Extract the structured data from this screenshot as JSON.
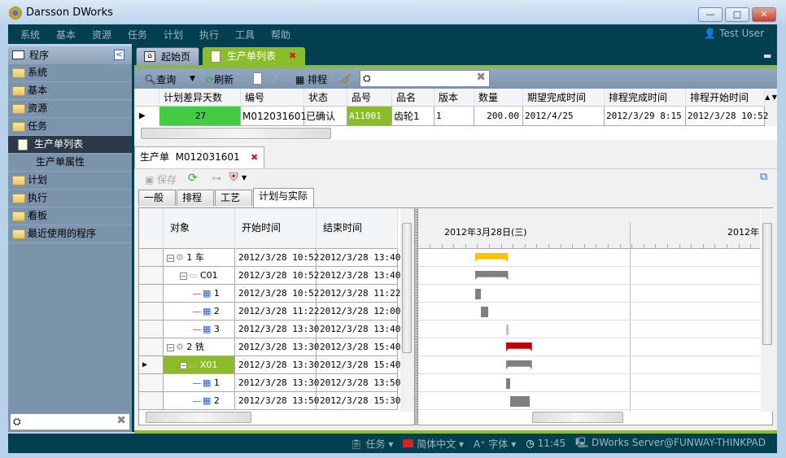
{
  "window": {
    "title": "Darsson DWorks",
    "min": "—",
    "max": "□",
    "close": "✕"
  },
  "menu": [
    "系统",
    "基本",
    "资源",
    "任务",
    "计划",
    "执行",
    "工具",
    "帮助"
  ],
  "user": "Test User",
  "sidebar": {
    "header": "程序",
    "collapse": "<",
    "items": [
      {
        "label": "系统",
        "type": "folder"
      },
      {
        "label": "基本",
        "type": "folder"
      },
      {
        "label": "资源",
        "type": "folder"
      },
      {
        "label": "任务",
        "type": "folder"
      },
      {
        "label": "生产单列表",
        "type": "page",
        "selected": true
      },
      {
        "label": "生产单属性",
        "type": "sub"
      },
      {
        "label": "计划",
        "type": "folder"
      },
      {
        "label": "执行",
        "type": "folder"
      },
      {
        "label": "看板",
        "type": "folder"
      },
      {
        "label": "最近使用的程序",
        "type": "folder"
      }
    ],
    "search_value": ""
  },
  "tabs": [
    {
      "label": "起始页",
      "active": false
    },
    {
      "label": "生产单列表",
      "active": true
    }
  ],
  "toolbar": {
    "query": "查询",
    "refresh": "刷新",
    "schedule": "排程",
    "search_value": ""
  },
  "list": {
    "columns": [
      "计划差异天数",
      "编号",
      "状态",
      "品号",
      "品名",
      "版本",
      "数量",
      "期望完成时间",
      "排程完成时间",
      "排程开始时间"
    ],
    "rows": [
      [
        "27",
        "M012031601",
        "已确认",
        "A11001",
        "齿轮1",
        "1",
        "200.00",
        "2012/4/25",
        "2012/3/29 8:15",
        "2012/3/28 10:52"
      ]
    ]
  },
  "detail": {
    "tab_label": "生产单  M012031601",
    "save": "保存",
    "subtabs": [
      "一般",
      "排程",
      "工艺",
      "计划与实际"
    ],
    "active_subtab": "计划与实际",
    "tree_columns": [
      "对象",
      "开始时间",
      "结束时间"
    ],
    "tree_rows": [
      {
        "level": 0,
        "icon": "gear",
        "label": "1 车",
        "start": "2012/3/28 10:52",
        "end": "2012/3/28 13:40",
        "bar": "summary",
        "color": "#ffc000"
      },
      {
        "level": 1,
        "icon": "folder",
        "label": "C01",
        "start": "2012/3/28 10:52",
        "end": "2012/3/28 13:40",
        "bar": "summary",
        "color": "#808080"
      },
      {
        "level": 2,
        "icon": "calendar",
        "label": "1",
        "start": "2012/3/28 10:52",
        "end": "2012/3/28 11:22",
        "bar": "task",
        "color": "#808080"
      },
      {
        "level": 2,
        "icon": "calendar",
        "label": "2",
        "start": "2012/3/28 11:22",
        "end": "2012/3/28 12:00",
        "bar": "task",
        "color": "#808080"
      },
      {
        "level": 2,
        "icon": "calendar",
        "label": "3",
        "start": "2012/3/28 13:30",
        "end": "2012/3/28 13:40",
        "bar": "task",
        "color": "#c0c0c0"
      },
      {
        "level": 0,
        "icon": "gear",
        "label": "2 铣",
        "start": "2012/3/28 13:30",
        "end": "2012/3/28 15:40",
        "bar": "summary",
        "color": "#c00000"
      },
      {
        "level": 1,
        "icon": "folder",
        "label": "X01",
        "start": "2012/3/28 13:30",
        "end": "2012/3/28 15:40",
        "bar": "summary",
        "color": "#808080",
        "selected": true
      },
      {
        "level": 2,
        "icon": "calendar",
        "label": "1",
        "start": "2012/3/28 13:30",
        "end": "2012/3/28 13:50",
        "bar": "task",
        "color": "#808080"
      },
      {
        "level": 2,
        "icon": "calendar",
        "label": "2",
        "start": "2012/3/28 13:50",
        "end": "2012/3/28 15:30",
        "bar": "task",
        "color": "#808080"
      }
    ],
    "gantt_days": [
      "2012年3月28日(三)",
      "2012年"
    ]
  },
  "status": {
    "task": "任务",
    "language": "简体中文",
    "font": "字体",
    "time": "11:45",
    "server": "DWorks Server@FUNWAY-THINKPAD"
  },
  "colors": {
    "menu_bg": "#03404f",
    "accent_green": "#8bbd2a",
    "positive_cell": "#44cc44"
  }
}
